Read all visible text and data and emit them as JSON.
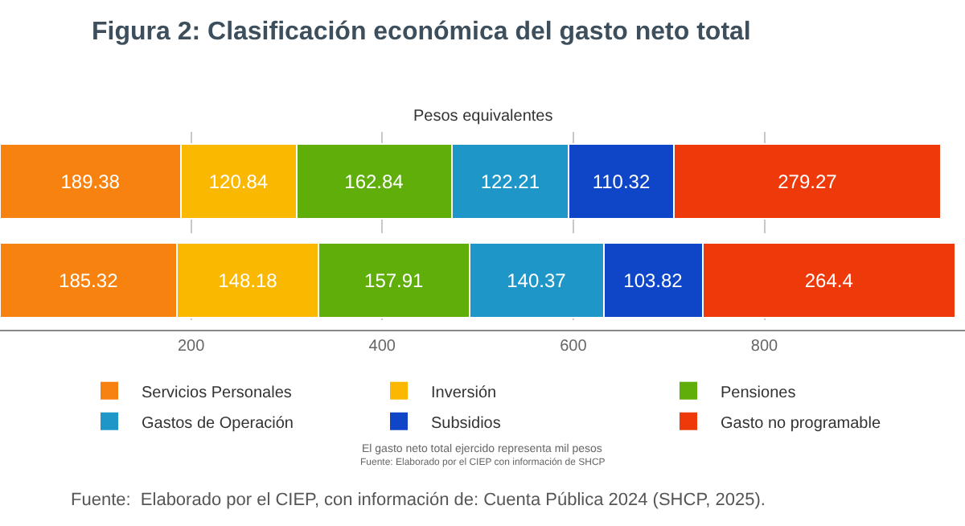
{
  "chart_data": {
    "type": "bar",
    "orientation": "horizontal",
    "stacked": true,
    "title": "Figura 2: Clasificación económica del gasto neto total",
    "subtitle": "Pesos equivalentes",
    "categories": [
      null,
      null
    ],
    "series": [
      {
        "name": "Servicios Personales",
        "color": "#f7820f",
        "values": [
          189.38,
          185.32
        ]
      },
      {
        "name": "Inversión",
        "color": "#fbb800",
        "values": [
          120.84,
          148.18
        ]
      },
      {
        "name": "Pensiones",
        "color": "#5fae0a",
        "values": [
          162.84,
          157.91
        ]
      },
      {
        "name": "Gastos de Operación",
        "color": "#1e96c8",
        "values": [
          122.21,
          140.37
        ]
      },
      {
        "name": "Subsidios",
        "color": "#0f46c8",
        "values": [
          110.32,
          103.82
        ]
      },
      {
        "name": "Gasto no programable",
        "color": "#ee3a0a",
        "values": [
          279.27,
          264.4
        ]
      }
    ],
    "xlim": [
      0,
      1010
    ],
    "xticks": [
      200,
      400,
      600,
      800
    ],
    "grid": "x",
    "legend": "bottom",
    "data_labels": true,
    "annotations": [
      "El gasto neto total ejercido representa mil pesos",
      "Fuente: Elaborado por el CIEP con información de SHCP",
      "Fuente:  Elaborado por el CIEP, con información de: Cuenta Pública 2024 (SHCP, 2025)."
    ]
  }
}
